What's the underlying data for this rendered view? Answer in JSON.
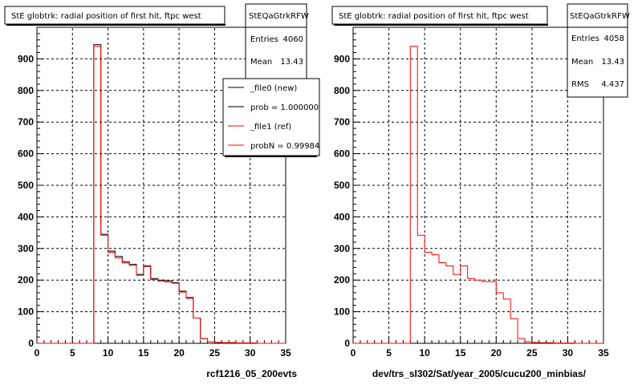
{
  "chart_data": [
    {
      "type": "bar",
      "title": "StE globtrk: radial position of first hit, ftpc west",
      "xlabel": "rcf1216_05_200evts",
      "xlim": [
        0,
        35
      ],
      "ylim": [
        0,
        1000
      ],
      "x_ticks": [
        "0",
        "5",
        "10",
        "15",
        "20",
        "25",
        "30",
        "35"
      ],
      "y_ticks": [
        "0",
        "100",
        "200",
        "300",
        "400",
        "500",
        "600",
        "700",
        "800",
        "900"
      ],
      "bin_edges": [
        0,
        1,
        2,
        3,
        4,
        5,
        6,
        7,
        8,
        9,
        10,
        11,
        12,
        13,
        14,
        15,
        16,
        17,
        18,
        19,
        20,
        21,
        22,
        23,
        24,
        25,
        26,
        27,
        28,
        29,
        30,
        31,
        32,
        33,
        34,
        35
      ],
      "series": [
        {
          "name": "_file0 (new)",
          "color": "#000000",
          "values": [
            0,
            0,
            0,
            0,
            0,
            0,
            0,
            0,
            945,
            345,
            292,
            275,
            258,
            250,
            218,
            243,
            205,
            200,
            198,
            192,
            165,
            145,
            80,
            15,
            5,
            3,
            2,
            2,
            1,
            1,
            1,
            0,
            0,
            0,
            0
          ]
        },
        {
          "name": "_file1 (ref)",
          "color": "#ff0000",
          "values": [
            0,
            0,
            0,
            0,
            0,
            0,
            0,
            0,
            940,
            342,
            288,
            270,
            254,
            246,
            215,
            246,
            202,
            197,
            194,
            190,
            162,
            142,
            80,
            15,
            5,
            3,
            2,
            2,
            1,
            1,
            1,
            0,
            0,
            0,
            0
          ]
        }
      ],
      "stats": {
        "name": "StEQaGtrkRFW",
        "entries_label": "Entries",
        "entries": "4060",
        "mean_label": "Mean",
        "mean": "13.43"
      },
      "legend": [
        "_file0 (new)",
        "prob = 1.000000",
        "_file1 (ref)",
        "probN = 0.99984"
      ],
      "grid": true
    },
    {
      "type": "bar",
      "title": "StE globtrk: radial position of first hit, ftpc west",
      "xlabel": "dev/trs_sl302/Sat/year_2005/cucu200_minbias/",
      "xlim": [
        0,
        35
      ],
      "ylim": [
        0,
        1000
      ],
      "x_ticks": [
        "0",
        "5",
        "10",
        "15",
        "20",
        "25",
        "30",
        "35"
      ],
      "y_ticks": [
        "0",
        "100",
        "200",
        "300",
        "400",
        "500",
        "600",
        "700",
        "800",
        "900"
      ],
      "bin_edges": [
        0,
        1,
        2,
        3,
        4,
        5,
        6,
        7,
        8,
        9,
        10,
        11,
        12,
        13,
        14,
        15,
        16,
        17,
        18,
        19,
        20,
        21,
        22,
        23,
        24,
        25,
        26,
        27,
        28,
        29,
        30,
        31,
        32,
        33,
        34,
        35
      ],
      "series": [
        {
          "name": "",
          "color": "#ff0000",
          "values": [
            0,
            0,
            0,
            0,
            0,
            0,
            0,
            0,
            940,
            342,
            288,
            280,
            255,
            245,
            218,
            245,
            205,
            200,
            195,
            195,
            160,
            140,
            78,
            15,
            5,
            3,
            2,
            2,
            1,
            1,
            1,
            0,
            0,
            0,
            0
          ]
        }
      ],
      "stats": {
        "name": "StEQaGtrkRFW",
        "entries_label": "Entries",
        "entries": "4058",
        "mean_label": "Mean",
        "mean": "13.43",
        "rms_label": "RMS",
        "rms": "4.437"
      },
      "grid": true
    }
  ]
}
